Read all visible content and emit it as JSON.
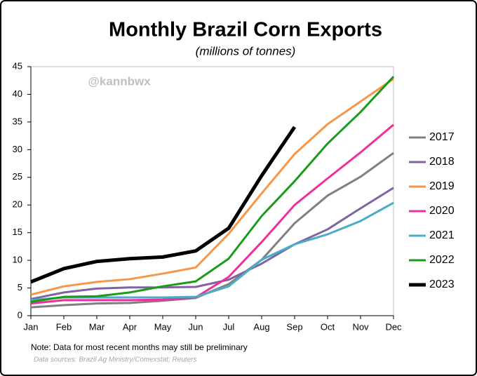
{
  "chart_data": {
    "type": "line",
    "title": "Monthly Brazil Corn Exports",
    "subtitle": "(millions of tonnes)",
    "watermark": "@kannbwx",
    "note": "Note: Data for most recent months may still be preliminary",
    "source": "Data sources: Brazil Ag Ministry/Comexstat; Reuters",
    "categories": [
      "Jan",
      "Feb",
      "Mar",
      "Apr",
      "May",
      "Jun",
      "Jul",
      "Aug",
      "Sep",
      "Oct",
      "Nov",
      "Dec"
    ],
    "ylim": [
      0,
      45
    ],
    "yticks": [
      0,
      5,
      10,
      15,
      20,
      25,
      30,
      35,
      40,
      45
    ],
    "grid": false,
    "legend": "right",
    "series": [
      {
        "name": "2017",
        "color": "#808080",
        "values": [
          1.5,
          1.9,
          2.2,
          2.3,
          2.7,
          3.2,
          5.7,
          10.1,
          16.7,
          21.7,
          25.1,
          29.4
        ]
      },
      {
        "name": "2018",
        "color": "#8064a2",
        "values": [
          3.0,
          4.2,
          4.9,
          5.1,
          5.1,
          5.2,
          6.5,
          9.4,
          12.9,
          15.6,
          19.4,
          23.1
        ]
      },
      {
        "name": "2019",
        "color": "#f79646",
        "values": [
          3.8,
          5.3,
          6.1,
          6.6,
          7.6,
          8.7,
          14.8,
          22.1,
          29.2,
          34.6,
          38.7,
          42.8
        ]
      },
      {
        "name": "2020",
        "color": "#f0309a",
        "values": [
          2.2,
          2.8,
          2.8,
          2.8,
          2.9,
          3.3,
          7.0,
          13.3,
          20.0,
          24.8,
          29.5,
          34.5
        ]
      },
      {
        "name": "2021",
        "color": "#4bacc6",
        "values": [
          2.8,
          3.3,
          3.3,
          3.3,
          3.3,
          3.4,
          5.3,
          10.1,
          12.9,
          14.7,
          17.1,
          20.4
        ]
      },
      {
        "name": "2022",
        "color": "#1a9c1a",
        "values": [
          2.5,
          3.4,
          3.5,
          4.2,
          5.3,
          6.2,
          10.3,
          18.0,
          24.3,
          31.1,
          36.8,
          43.2
        ]
      },
      {
        "name": "2023",
        "color": "#000000",
        "values": [
          6.1,
          8.5,
          9.8,
          10.3,
          10.6,
          11.7,
          15.8,
          25.3,
          34.1,
          null,
          null,
          null
        ]
      }
    ]
  }
}
